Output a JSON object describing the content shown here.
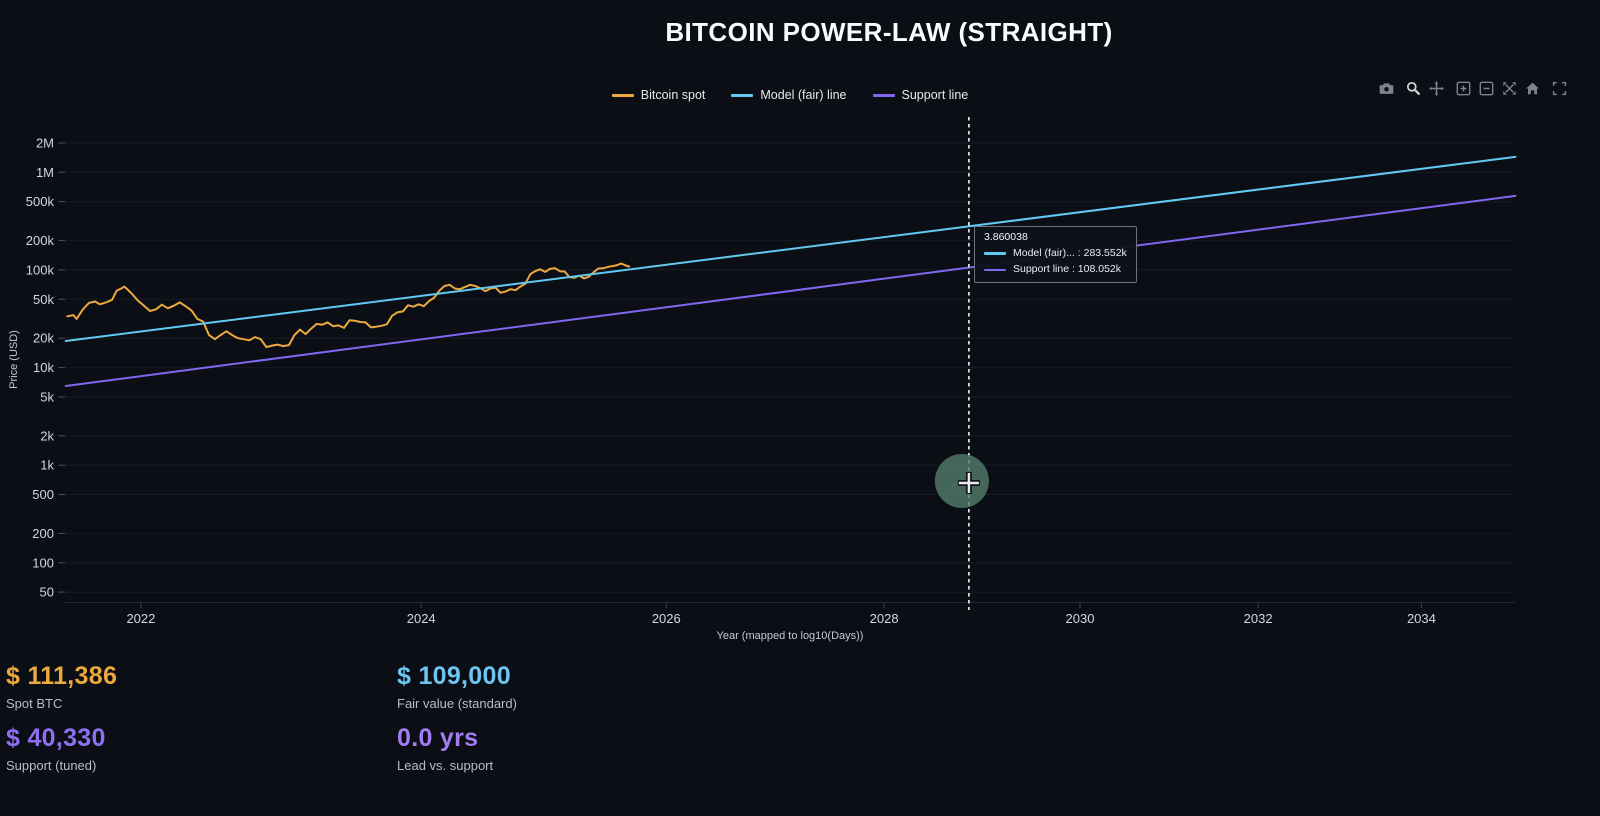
{
  "header": {
    "title": "BITCOIN POWER-LAW (STRAIGHT)"
  },
  "modebar": {
    "active_tool": "zoom",
    "icons": [
      "camera",
      "zoom",
      "pan",
      "zoom-in",
      "zoom-out",
      "autoscale",
      "reset-axes-home",
      "fullscreen"
    ]
  },
  "hover": {
    "x_value": "3.860038",
    "rows": [
      {
        "color": "#62c9f2",
        "label": "Model (fair)... : 283.552k"
      },
      {
        "color": "#8266f0",
        "label": "Support line : 108.052k"
      }
    ]
  },
  "metrics": [
    {
      "value": "$ 111,386",
      "label": "Spot BTC",
      "color": "#eca93d"
    },
    {
      "value": "$ 109,000",
      "label": "Fair value (standard)",
      "color": "#6dc5f2"
    },
    {
      "value": "$ 40,330",
      "label": "Support (tuned)",
      "color": "#8d6ff2"
    },
    {
      "value": "0.0 yrs",
      "label": "Lead vs. support",
      "color": "#a47cf2"
    }
  ],
  "chart_data": {
    "type": "line",
    "title": "BITCOIN POWER-LAW (STRAIGHT)",
    "xlabel": "Year (mapped to log10(Days))",
    "ylabel": "Price (USD)",
    "legend_position": "top-center",
    "grid": true,
    "x_axis": {
      "scale": "log10(days since genesis)",
      "genesis_year_decimal": 2009.0055,
      "log10_days_range": [
        3.6595,
        3.9812
      ],
      "tick_years": [
        2022,
        2024,
        2026,
        2028,
        2030,
        2032,
        2034
      ]
    },
    "y_axis": {
      "scale": "log",
      "log10_price_range": [
        1.598,
        6.567
      ],
      "ticks": [
        {
          "label": "2M",
          "value": 2000000
        },
        {
          "label": "1M",
          "value": 1000000
        },
        {
          "label": "500k",
          "value": 500000
        },
        {
          "label": "200k",
          "value": 200000
        },
        {
          "label": "100k",
          "value": 100000
        },
        {
          "label": "50k",
          "value": 50000
        },
        {
          "label": "20k",
          "value": 20000
        },
        {
          "label": "10k",
          "value": 10000
        },
        {
          "label": "5k",
          "value": 5000
        },
        {
          "label": "2k",
          "value": 2000
        },
        {
          "label": "1k",
          "value": 1000
        },
        {
          "label": "500",
          "value": 500
        },
        {
          "label": "200",
          "value": 200
        },
        {
          "label": "100",
          "value": 100
        },
        {
          "label": "50",
          "value": 50
        }
      ]
    },
    "crosshair": {
      "x_log10_days": 3.860038,
      "model_value_label": "283.552k",
      "support_value_label": "108.052k"
    },
    "series": [
      {
        "name": "Bitcoin spot",
        "color": "#eca93d",
        "type": "line",
        "points_year_usd": [
          [
            2021.52,
            33500
          ],
          [
            2021.56,
            34500
          ],
          [
            2021.58,
            31500
          ],
          [
            2021.62,
            39500
          ],
          [
            2021.66,
            46000
          ],
          [
            2021.7,
            47500
          ],
          [
            2021.73,
            44500
          ],
          [
            2021.77,
            46500
          ],
          [
            2021.81,
            49500
          ],
          [
            2021.84,
            61500
          ],
          [
            2021.87,
            64500
          ],
          [
            2021.89,
            67500
          ],
          [
            2021.91,
            63500
          ],
          [
            2021.94,
            57000
          ],
          [
            2021.98,
            48500
          ],
          [
            2022.02,
            43000
          ],
          [
            2022.06,
            38000
          ],
          [
            2022.1,
            39500
          ],
          [
            2022.14,
            44000
          ],
          [
            2022.18,
            40500
          ],
          [
            2022.22,
            43000
          ],
          [
            2022.26,
            46500
          ],
          [
            2022.3,
            42500
          ],
          [
            2022.34,
            38500
          ],
          [
            2022.38,
            31500
          ],
          [
            2022.42,
            29500
          ],
          [
            2022.46,
            21500
          ],
          [
            2022.5,
            19500
          ],
          [
            2022.54,
            21500
          ],
          [
            2022.58,
            23500
          ],
          [
            2022.62,
            21500
          ],
          [
            2022.66,
            20000
          ],
          [
            2022.7,
            19500
          ],
          [
            2022.74,
            19000
          ],
          [
            2022.78,
            20500
          ],
          [
            2022.82,
            19500
          ],
          [
            2022.86,
            16200
          ],
          [
            2022.9,
            16800
          ],
          [
            2022.94,
            17200
          ],
          [
            2022.98,
            16600
          ],
          [
            2023.02,
            17000
          ],
          [
            2023.06,
            21500
          ],
          [
            2023.1,
            24500
          ],
          [
            2023.14,
            22000
          ],
          [
            2023.18,
            25000
          ],
          [
            2023.22,
            28000
          ],
          [
            2023.26,
            27500
          ],
          [
            2023.3,
            29000
          ],
          [
            2023.34,
            26500
          ],
          [
            2023.38,
            27000
          ],
          [
            2023.42,
            25500
          ],
          [
            2023.46,
            30500
          ],
          [
            2023.5,
            30200
          ],
          [
            2023.54,
            29300
          ],
          [
            2023.58,
            29000
          ],
          [
            2023.62,
            25800
          ],
          [
            2023.66,
            26200
          ],
          [
            2023.7,
            26800
          ],
          [
            2023.74,
            27800
          ],
          [
            2023.78,
            34000
          ],
          [
            2023.82,
            36800
          ],
          [
            2023.86,
            37500
          ],
          [
            2023.9,
            43500
          ],
          [
            2023.94,
            42000
          ],
          [
            2023.98,
            44500
          ],
          [
            2024.02,
            42500
          ],
          [
            2024.06,
            48000
          ],
          [
            2024.1,
            52000
          ],
          [
            2024.14,
            61500
          ],
          [
            2024.18,
            68500
          ],
          [
            2024.22,
            70500
          ],
          [
            2024.26,
            64500
          ],
          [
            2024.3,
            63500
          ],
          [
            2024.34,
            67000
          ],
          [
            2024.38,
            70500
          ],
          [
            2024.42,
            68500
          ],
          [
            2024.46,
            65000
          ],
          [
            2024.5,
            60500
          ],
          [
            2024.54,
            64500
          ],
          [
            2024.58,
            66000
          ],
          [
            2024.62,
            58500
          ],
          [
            2024.66,
            60000
          ],
          [
            2024.7,
            63500
          ],
          [
            2024.74,
            62000
          ],
          [
            2024.78,
            67500
          ],
          [
            2024.82,
            72500
          ],
          [
            2024.86,
            90500
          ],
          [
            2024.9,
            97500
          ],
          [
            2024.94,
            101500
          ],
          [
            2024.98,
            95500
          ],
          [
            2025.02,
            102500
          ],
          [
            2025.06,
            104500
          ],
          [
            2025.1,
            97000
          ],
          [
            2025.14,
            96500
          ],
          [
            2025.18,
            84500
          ],
          [
            2025.22,
            83000
          ],
          [
            2025.26,
            87500
          ],
          [
            2025.3,
            82000
          ],
          [
            2025.34,
            85000
          ],
          [
            2025.38,
            94500
          ],
          [
            2025.42,
            103500
          ],
          [
            2025.46,
            104000
          ],
          [
            2025.5,
            107500
          ],
          [
            2025.54,
            109500
          ],
          [
            2025.58,
            112000
          ],
          [
            2025.61,
            116500
          ],
          [
            2025.64,
            113000
          ],
          [
            2025.66,
            110000
          ],
          [
            2025.68,
            108500
          ]
        ]
      },
      {
        "name": "Model (fair) line",
        "color": "#62c9f2",
        "type": "line",
        "points_year_usd": [
          [
            2021.51,
            18700
          ],
          [
            2035.23,
            1438000
          ]
        ]
      },
      {
        "name": "Support line",
        "color": "#8266f0",
        "type": "line",
        "points_year_usd": [
          [
            2021.51,
            6470
          ],
          [
            2035.23,
            573000
          ]
        ]
      }
    ]
  }
}
